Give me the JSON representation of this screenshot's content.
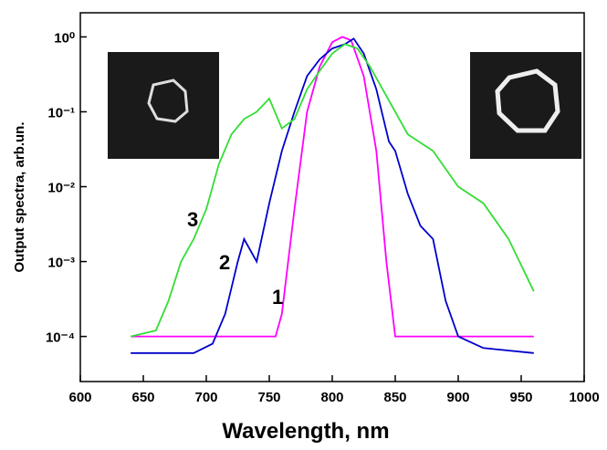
{
  "chart_data": {
    "type": "line",
    "xlabel": "Wavelength, nm",
    "ylabel": "Output spectra, arb.un.",
    "log_y": true,
    "xlim": [
      600,
      1000
    ],
    "xticks": [
      600,
      650,
      700,
      750,
      800,
      850,
      900,
      950,
      1000
    ],
    "ylim": [
      2.5e-05,
      2.1
    ],
    "yticks": [
      {
        "value": 0.0001,
        "label": "10⁻⁴"
      },
      {
        "value": 0.001,
        "label": "10⁻³"
      },
      {
        "value": 0.01,
        "label": "10⁻²"
      },
      {
        "value": 0.1,
        "label": "10⁻¹"
      },
      {
        "value": 1,
        "label": "10⁰"
      }
    ],
    "series": [
      {
        "name": "1",
        "color": "#ff00ff",
        "x": [
          640,
          700,
          755,
          760,
          770,
          780,
          790,
          800,
          808,
          815,
          825,
          835,
          843,
          850,
          900,
          960
        ],
        "values": [
          0.0001,
          0.0001,
          0.0001,
          0.0002,
          0.005,
          0.1,
          0.4,
          0.85,
          1.0,
          0.9,
          0.3,
          0.03,
          0.001,
          0.0001,
          0.0001,
          0.0001
        ]
      },
      {
        "name": "2",
        "color": "#0000cc",
        "x": [
          640,
          690,
          705,
          715,
          725,
          730,
          740,
          750,
          760,
          770,
          780,
          790,
          800,
          810,
          817,
          825,
          835,
          845,
          850,
          860,
          870,
          880,
          890,
          900,
          920,
          960
        ],
        "values": [
          6e-05,
          6e-05,
          8e-05,
          0.0002,
          0.001,
          0.002,
          0.001,
          0.006,
          0.03,
          0.1,
          0.3,
          0.5,
          0.7,
          0.8,
          0.95,
          0.6,
          0.2,
          0.04,
          0.03,
          0.008,
          0.003,
          0.002,
          0.0003,
          0.0001,
          7e-05,
          6e-05
        ]
      },
      {
        "name": "3",
        "color": "#33dd33",
        "x": [
          640,
          660,
          670,
          680,
          690,
          700,
          710,
          720,
          730,
          740,
          750,
          760,
          770,
          780,
          790,
          800,
          810,
          820,
          830,
          840,
          850,
          860,
          880,
          900,
          920,
          940,
          960
        ],
        "values": [
          0.0001,
          0.00012,
          0.0003,
          0.001,
          0.002,
          0.005,
          0.02,
          0.05,
          0.08,
          0.1,
          0.15,
          0.06,
          0.08,
          0.2,
          0.35,
          0.6,
          0.8,
          0.7,
          0.4,
          0.2,
          0.1,
          0.05,
          0.03,
          0.01,
          0.006,
          0.002,
          0.0004
        ]
      }
    ]
  }
}
